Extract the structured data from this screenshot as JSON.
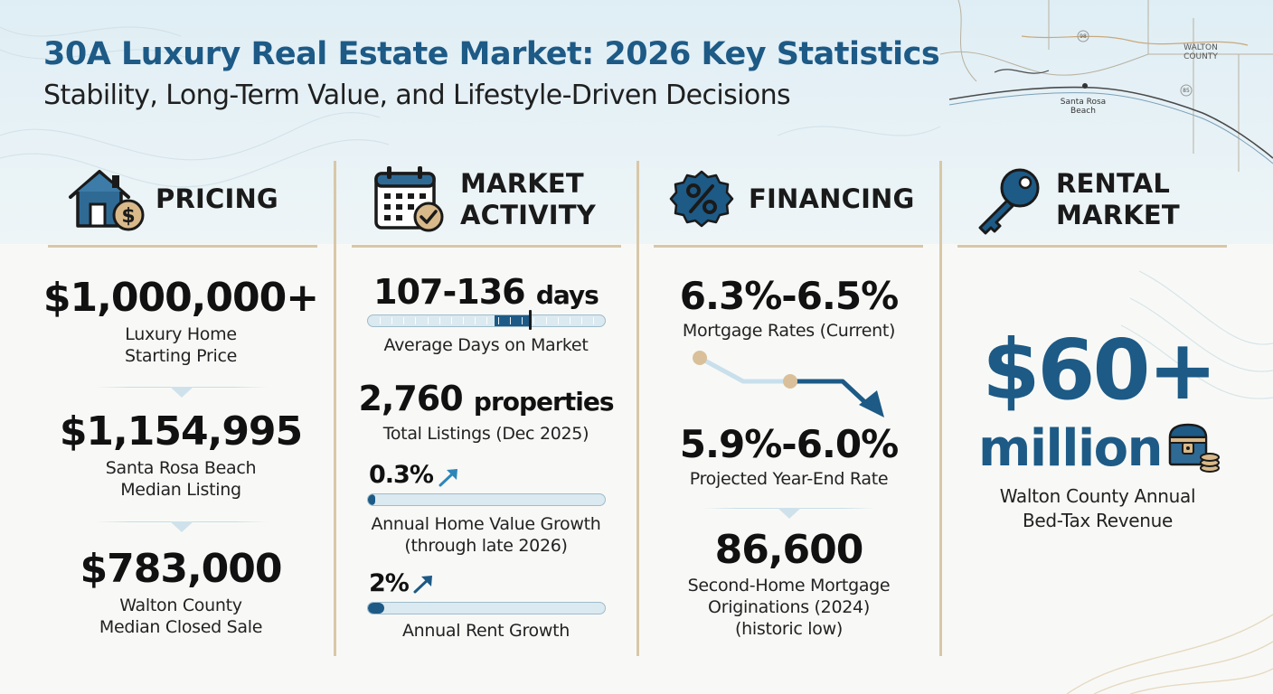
{
  "header": {
    "title": "30A Luxury Real Estate Market: 2026 Key Statistics",
    "subtitle": "Stability, Long-Term Value, and Lifestyle-Driven Decisions"
  },
  "map": {
    "labels": {
      "county_line1": "WALTON",
      "county_line2": "COUNTY",
      "town_line1": "Santa Rosa",
      "town_line2": "Beach",
      "route_a": "98",
      "route_b": "85"
    }
  },
  "colors": {
    "accent": "#1d5a86",
    "divider": "#d8c7a8",
    "bar_track": "#dbe9f0",
    "coin": "#d9b98a"
  },
  "pricing": {
    "heading": "PRICING",
    "icon": "house-dollar-icon",
    "stats": [
      {
        "value": "$1,000,000+",
        "label_line1": "Luxury Home",
        "label_line2": "Starting Price"
      },
      {
        "value": "$1,154,995",
        "label_line1": "Santa Rosa Beach",
        "label_line2": "Median Listing"
      },
      {
        "value": "$783,000",
        "label_line1": "Walton County",
        "label_line2": "Median Closed Sale"
      }
    ]
  },
  "market_activity": {
    "heading_line1": "MARKET",
    "heading_line2": "ACTIVITY",
    "icon": "calendar-check-icon",
    "days_number": "107-136",
    "days_unit": "days",
    "days_label": "Average Days on Market",
    "days_range": {
      "min": 0,
      "max": 200,
      "from": 107,
      "to": 136,
      "marker": 136
    },
    "listings_number": "2,760",
    "listings_unit": "properties",
    "listings_label": "Total Listings (Dec 2025)",
    "value_growth": "0.3%",
    "value_growth_fraction": 0.03,
    "value_growth_label_line1": "Annual Home Value Growth",
    "value_growth_label_line2": "(through late 2026)",
    "rent_growth": "2%",
    "rent_growth_fraction": 0.07,
    "rent_growth_label": "Annual Rent Growth"
  },
  "financing": {
    "heading": "FINANCING",
    "icon": "percent-badge-icon",
    "current_rate": "6.3%-6.5%",
    "current_rate_label": "Mortgage Rates (Current)",
    "projected_rate": "5.9%-6.0%",
    "projected_rate_label": "Projected Year-End Rate",
    "originations": "86,600",
    "originations_label_line1": "Second-Home Mortgage",
    "originations_label_line2": "Originations (2024)",
    "originations_label_line3": "(historic low)"
  },
  "rental_market": {
    "heading_line1": "RENTAL",
    "heading_line2": "MARKET",
    "icon": "key-icon",
    "amount": "$60+",
    "amount_unit": "million",
    "label_line1": "Walton County Annual",
    "label_line2": "Bed-Tax Revenue",
    "badge_icon": "treasure-chest-coins-icon"
  }
}
